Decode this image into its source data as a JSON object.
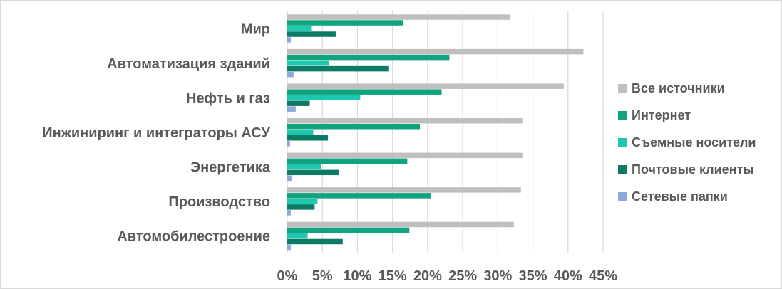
{
  "chart_data": {
    "type": "bar",
    "orientation": "horizontal",
    "categories": [
      "Мир",
      "Автоматизация зданий",
      "Нефть и газ",
      "Инжиниринг и интеграторы АСУ",
      "Энергетика",
      "Производство",
      "Автомобилестроение"
    ],
    "series": [
      {
        "name": "Все источники",
        "color": "#bfbfbf",
        "values": [
          31.8,
          42.2,
          39.4,
          33.5,
          33.5,
          33.3,
          32.3
        ]
      },
      {
        "name": "Интернет",
        "color": "#0fa37f",
        "values": [
          16.5,
          23.1,
          22.0,
          18.9,
          17.1,
          20.5,
          17.4
        ]
      },
      {
        "name": "Съемные носители",
        "color": "#1ec8b0",
        "values": [
          3.4,
          6.0,
          10.4,
          3.7,
          4.8,
          4.3,
          2.9
        ]
      },
      {
        "name": "Почтовые клиенты",
        "color": "#0b7b65",
        "values": [
          6.9,
          14.4,
          3.2,
          5.8,
          7.4,
          3.9,
          7.9
        ]
      },
      {
        "name": "Сетевые папки",
        "color": "#8eaadb",
        "values": [
          0.5,
          0.9,
          1.2,
          0.4,
          0.6,
          0.5,
          0.5
        ]
      }
    ],
    "xlim": [
      0,
      45
    ],
    "xticks": [
      "0%",
      "5%",
      "10%",
      "15%",
      "20%",
      "25%",
      "30%",
      "35%",
      "40%",
      "45%"
    ],
    "grid": true,
    "legend_position": "right"
  }
}
